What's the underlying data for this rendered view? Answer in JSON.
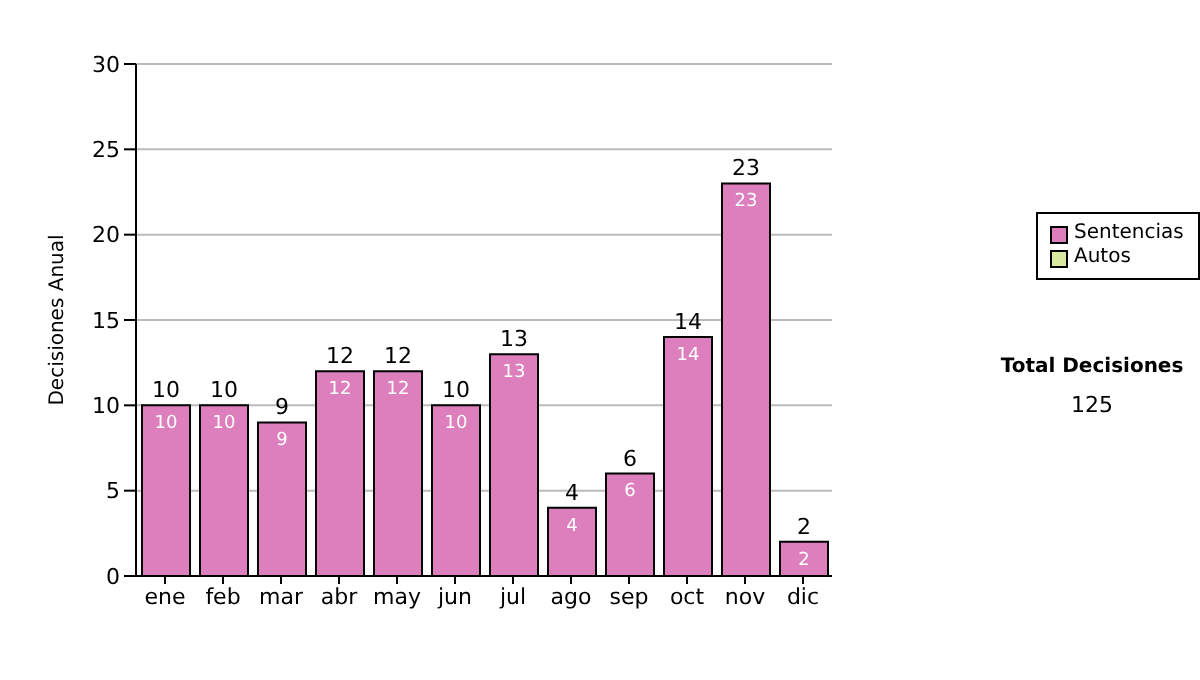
{
  "chart_data": {
    "type": "bar",
    "ylabel": "Decisiones Anual",
    "categories": [
      "ene",
      "feb",
      "mar",
      "abr",
      "may",
      "jun",
      "jul",
      "ago",
      "sep",
      "oct",
      "nov",
      "dic"
    ],
    "series": [
      {
        "name": "Sentencias",
        "color": "#dd7fbd",
        "values": [
          10,
          10,
          9,
          12,
          12,
          10,
          13,
          4,
          6,
          14,
          23,
          2
        ],
        "value_labels": [
          "10",
          "10",
          "9",
          "12",
          "12",
          "10",
          "13",
          "4",
          "6",
          "14",
          "23",
          "2"
        ]
      },
      {
        "name": "Autos",
        "color": "#d8e8a0",
        "values": [
          0,
          0,
          0,
          0,
          0,
          0,
          0,
          0,
          0,
          0,
          0,
          0
        ]
      }
    ],
    "stacked": true,
    "totals": [
      "10",
      "10",
      "9",
      "12",
      "12",
      "10",
      "13",
      "4",
      "6",
      "14",
      "23",
      "2"
    ],
    "ylim": [
      0,
      30
    ],
    "yticks": [
      0,
      5,
      10,
      15,
      20,
      25,
      30
    ],
    "grid": "y",
    "legend": "right",
    "annotations": [
      "Total Decisiones",
      "125"
    ]
  }
}
